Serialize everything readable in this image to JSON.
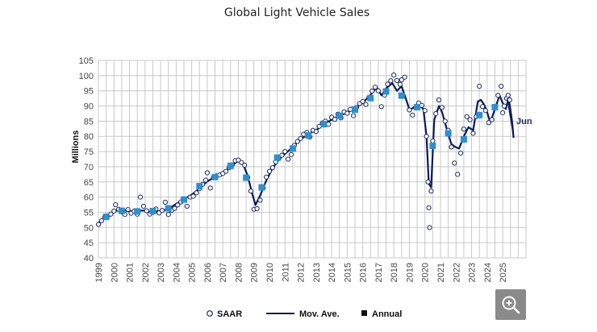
{
  "chart_data": {
    "type": "line",
    "title": "Global Light Vehicle Sales",
    "ylabel": "Millions",
    "xlabel": "",
    "ylim": [
      40,
      105
    ],
    "y_ticks": [
      40,
      45,
      50,
      55,
      60,
      65,
      70,
      75,
      80,
      85,
      90,
      95,
      100,
      105
    ],
    "x_ticks": [
      "1999",
      "2000",
      "2001",
      "2002",
      "2003",
      "2004",
      "2005",
      "2006",
      "2007",
      "2008",
      "2009",
      "2010",
      "2011",
      "2012",
      "2013",
      "2014",
      "2015",
      "2016",
      "2017",
      "2018",
      "2019",
      "2020",
      "2021",
      "2022",
      "2023",
      "2024",
      "2025"
    ],
    "grid": true,
    "legend_position": "bottom",
    "annotation": "Jun",
    "series": [
      {
        "name": "SAAR",
        "marker": "hollow-circle",
        "color": "#1a2a5e",
        "points": [
          [
            1999.0,
            51.0
          ],
          [
            1999.2,
            52.2
          ],
          [
            1999.4,
            53.4
          ],
          [
            1999.6,
            53.8
          ],
          [
            1999.8,
            54.4
          ],
          [
            2000.0,
            55.4
          ],
          [
            2000.1,
            57.5
          ],
          [
            2000.3,
            56.0
          ],
          [
            2000.5,
            55.1
          ],
          [
            2000.7,
            54.3
          ],
          [
            2000.9,
            55.9
          ],
          [
            2001.1,
            54.7
          ],
          [
            2001.3,
            55.4
          ],
          [
            2001.5,
            54.4
          ],
          [
            2001.7,
            60.0
          ],
          [
            2001.9,
            57.0
          ],
          [
            2002.1,
            55.5
          ],
          [
            2002.3,
            54.4
          ],
          [
            2002.5,
            55.0
          ],
          [
            2002.7,
            56.1
          ],
          [
            2002.9,
            54.8
          ],
          [
            2003.1,
            55.6
          ],
          [
            2003.3,
            58.3
          ],
          [
            2003.5,
            54.3
          ],
          [
            2003.7,
            55.6
          ],
          [
            2003.9,
            56.3
          ],
          [
            2004.1,
            57.4
          ],
          [
            2004.3,
            58.4
          ],
          [
            2004.5,
            59.3
          ],
          [
            2004.7,
            57.0
          ],
          [
            2004.9,
            60.0
          ],
          [
            2005.1,
            60.3
          ],
          [
            2005.3,
            61.4
          ],
          [
            2005.5,
            62.8
          ],
          [
            2005.7,
            64.2
          ],
          [
            2005.9,
            65.6
          ],
          [
            2006.0,
            68.0
          ],
          [
            2006.2,
            63.0
          ],
          [
            2006.4,
            66.6
          ],
          [
            2006.6,
            67.0
          ],
          [
            2006.8,
            67.3
          ],
          [
            2007.0,
            67.8
          ],
          [
            2007.2,
            68.5
          ],
          [
            2007.4,
            69.7
          ],
          [
            2007.6,
            70.6
          ],
          [
            2007.8,
            72.0
          ],
          [
            2008.0,
            72.2
          ],
          [
            2008.2,
            71.4
          ],
          [
            2008.4,
            70.5
          ],
          [
            2008.6,
            66.5
          ],
          [
            2008.8,
            62.0
          ],
          [
            2009.0,
            56.0
          ],
          [
            2009.2,
            56.2
          ],
          [
            2009.4,
            59.0
          ],
          [
            2009.6,
            63.0
          ],
          [
            2009.8,
            66.6
          ],
          [
            2010.0,
            68.5
          ],
          [
            2010.2,
            69.7
          ],
          [
            2010.4,
            71.6
          ],
          [
            2010.6,
            72.7
          ],
          [
            2010.8,
            73.8
          ],
          [
            2011.0,
            75.0
          ],
          [
            2011.2,
            72.5
          ],
          [
            2011.4,
            74.0
          ],
          [
            2011.6,
            77.0
          ],
          [
            2011.8,
            78.3
          ],
          [
            2012.0,
            79.3
          ],
          [
            2012.2,
            80.7
          ],
          [
            2012.4,
            81.3
          ],
          [
            2012.6,
            79.8
          ],
          [
            2012.8,
            82.0
          ],
          [
            2013.0,
            81.6
          ],
          [
            2013.2,
            83.3
          ],
          [
            2013.4,
            84.4
          ],
          [
            2013.6,
            85.0
          ],
          [
            2013.8,
            84.0
          ],
          [
            2014.0,
            86.3
          ],
          [
            2014.2,
            85.6
          ],
          [
            2014.4,
            87.3
          ],
          [
            2014.6,
            86.1
          ],
          [
            2014.8,
            88.1
          ],
          [
            2015.0,
            87.6
          ],
          [
            2015.2,
            88.9
          ],
          [
            2015.4,
            86.8
          ],
          [
            2015.6,
            89.5
          ],
          [
            2015.8,
            90.8
          ],
          [
            2016.0,
            91.5
          ],
          [
            2016.2,
            90.5
          ],
          [
            2016.4,
            92.8
          ],
          [
            2016.6,
            94.9
          ],
          [
            2016.8,
            96.2
          ],
          [
            2017.0,
            95.0
          ],
          [
            2017.2,
            89.8
          ],
          [
            2017.4,
            93.6
          ],
          [
            2017.6,
            97.2
          ],
          [
            2017.8,
            98.3
          ],
          [
            2018.0,
            100.2
          ],
          [
            2018.2,
            98.4
          ],
          [
            2018.4,
            97.1
          ],
          [
            2018.5,
            98.6
          ],
          [
            2018.7,
            99.5
          ],
          [
            2019.0,
            88.7
          ],
          [
            2019.2,
            87.0
          ],
          [
            2019.4,
            89.5
          ],
          [
            2019.6,
            91.0
          ],
          [
            2019.8,
            90.2
          ],
          [
            2020.0,
            88.5
          ],
          [
            2020.1,
            80.0
          ],
          [
            2020.2,
            65.0
          ],
          [
            2020.25,
            56.5
          ],
          [
            2020.3,
            50.0
          ],
          [
            2020.4,
            62.0
          ],
          [
            2020.5,
            78.5
          ],
          [
            2020.7,
            87.5
          ],
          [
            2020.9,
            92.0
          ],
          [
            2021.1,
            89.5
          ],
          [
            2021.3,
            85.0
          ],
          [
            2021.5,
            82.0
          ],
          [
            2021.7,
            76.5
          ],
          [
            2021.9,
            71.2
          ],
          [
            2022.1,
            67.5
          ],
          [
            2022.3,
            74.5
          ],
          [
            2022.5,
            82.4
          ],
          [
            2022.7,
            86.5
          ],
          [
            2022.9,
            85.5
          ],
          [
            2023.1,
            81.0
          ],
          [
            2023.3,
            86.5
          ],
          [
            2023.5,
            96.5
          ],
          [
            2023.7,
            89.8
          ],
          [
            2023.9,
            88.5
          ],
          [
            2024.1,
            84.5
          ],
          [
            2024.3,
            85.5
          ],
          [
            2024.5,
            89.8
          ],
          [
            2024.7,
            93.5
          ],
          [
            2024.9,
            96.5
          ],
          [
            2025.0,
            87.8
          ],
          [
            2025.1,
            90.0
          ],
          [
            2025.25,
            92.5
          ],
          [
            2025.35,
            93.5
          ],
          [
            2025.45,
            92.0
          ]
        ]
      },
      {
        "name": "Mov. Ave.",
        "marker": "line",
        "color": "#0a1a5c",
        "points": [
          [
            1999.0,
            51.5
          ],
          [
            1999.5,
            53.2
          ],
          [
            2000.0,
            55.4
          ],
          [
            2000.5,
            55.8
          ],
          [
            2001.0,
            55.3
          ],
          [
            2001.5,
            55.5
          ],
          [
            2002.0,
            55.6
          ],
          [
            2002.5,
            54.8
          ],
          [
            2003.0,
            55.5
          ],
          [
            2003.5,
            56.0
          ],
          [
            2004.0,
            57.8
          ],
          [
            2004.5,
            59.3
          ],
          [
            2005.0,
            60.8
          ],
          [
            2005.5,
            62.8
          ],
          [
            2006.0,
            65.2
          ],
          [
            2006.5,
            66.6
          ],
          [
            2007.0,
            67.8
          ],
          [
            2007.5,
            70.0
          ],
          [
            2008.0,
            72.0
          ],
          [
            2008.3,
            71.0
          ],
          [
            2008.6,
            67.0
          ],
          [
            2008.9,
            61.0
          ],
          [
            2009.1,
            57.4
          ],
          [
            2009.4,
            60.5
          ],
          [
            2009.8,
            65.5
          ],
          [
            2010.2,
            69.5
          ],
          [
            2010.6,
            72.4
          ],
          [
            2011.0,
            74.2
          ],
          [
            2011.5,
            76.5
          ],
          [
            2012.0,
            79.0
          ],
          [
            2012.5,
            80.8
          ],
          [
            2013.0,
            82.0
          ],
          [
            2013.5,
            84.0
          ],
          [
            2014.0,
            85.5
          ],
          [
            2014.5,
            86.8
          ],
          [
            2015.0,
            87.8
          ],
          [
            2015.5,
            89.3
          ],
          [
            2016.0,
            91.0
          ],
          [
            2016.5,
            93.7
          ],
          [
            2016.9,
            96.1
          ],
          [
            2017.2,
            93.5
          ],
          [
            2017.5,
            95.8
          ],
          [
            2017.9,
            97.5
          ],
          [
            2018.2,
            95.0
          ],
          [
            2018.5,
            96.5
          ],
          [
            2018.8,
            92.0
          ],
          [
            2019.0,
            88.8
          ],
          [
            2019.3,
            89.5
          ],
          [
            2019.6,
            90.5
          ],
          [
            2019.9,
            89.0
          ],
          [
            2020.1,
            80.0
          ],
          [
            2020.25,
            64.5
          ],
          [
            2020.4,
            63.2
          ],
          [
            2020.6,
            85.5
          ],
          [
            2020.9,
            90.0
          ],
          [
            2021.1,
            88.0
          ],
          [
            2021.4,
            82.5
          ],
          [
            2021.7,
            77.5
          ],
          [
            2021.95,
            76.5
          ],
          [
            2022.2,
            76.0
          ],
          [
            2022.5,
            80.0
          ],
          [
            2022.8,
            83.0
          ],
          [
            2023.1,
            82.0
          ],
          [
            2023.4,
            91.5
          ],
          [
            2023.6,
            92.0
          ],
          [
            2023.8,
            90.5
          ],
          [
            2024.0,
            88.0
          ],
          [
            2024.2,
            84.5
          ],
          [
            2024.5,
            89.0
          ],
          [
            2024.8,
            93.5
          ],
          [
            2025.0,
            91.0
          ],
          [
            2025.2,
            89.0
          ],
          [
            2025.35,
            92.0
          ],
          [
            2025.45,
            90.5
          ],
          [
            2025.6,
            85.0
          ],
          [
            2025.7,
            79.5
          ]
        ]
      },
      {
        "name": "Annual",
        "marker": "square",
        "color": "#2e8fd0",
        "points": [
          [
            1999.5,
            53.5
          ],
          [
            2000.5,
            55.5
          ],
          [
            2001.5,
            55.3
          ],
          [
            2002.5,
            55.4
          ],
          [
            2003.5,
            56.3
          ],
          [
            2004.5,
            59.2
          ],
          [
            2005.5,
            63.6
          ],
          [
            2006.5,
            66.6
          ],
          [
            2007.5,
            70.3
          ],
          [
            2008.5,
            66.4
          ],
          [
            2009.5,
            63.2
          ],
          [
            2010.5,
            73.0
          ],
          [
            2011.5,
            76.0
          ],
          [
            2012.5,
            80.3
          ],
          [
            2013.5,
            84.0
          ],
          [
            2014.5,
            86.8
          ],
          [
            2015.5,
            88.8
          ],
          [
            2016.5,
            92.6
          ],
          [
            2017.5,
            94.8
          ],
          [
            2018.5,
            93.4
          ],
          [
            2019.5,
            89.6
          ],
          [
            2020.5,
            76.9
          ],
          [
            2021.5,
            81.0
          ],
          [
            2022.5,
            79.0
          ],
          [
            2023.5,
            87.0
          ],
          [
            2024.5,
            89.6
          ]
        ]
      }
    ]
  }
}
